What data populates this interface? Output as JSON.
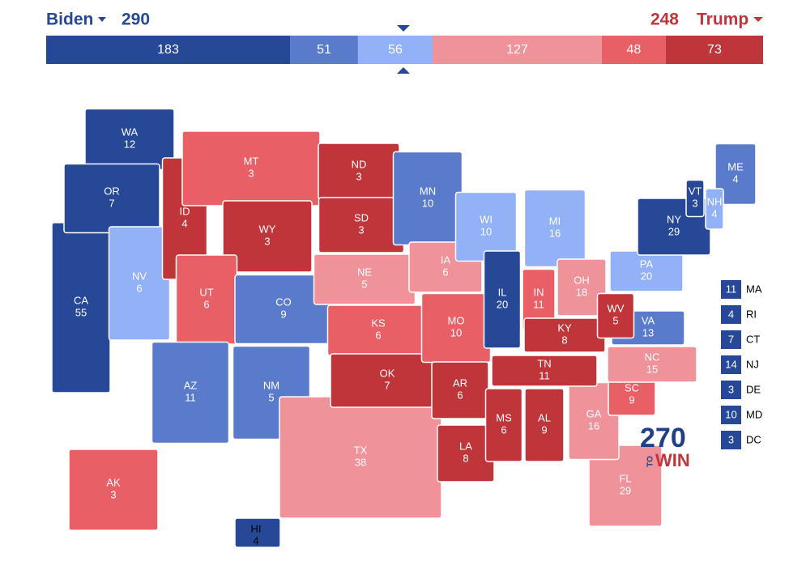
{
  "header": {
    "left_name": "Biden",
    "left_total": 290,
    "right_total": 248,
    "right_name": "Trump"
  },
  "ratings": [
    {
      "color": "#264896"
    },
    {
      "color": "#5a7bcb"
    },
    {
      "color": "#93b1f6"
    },
    {
      "color": "#f0929a"
    },
    {
      "color": "#e95f66"
    },
    {
      "color": "#c0353a"
    }
  ],
  "bar": [
    {
      "value": 183,
      "rating": 0
    },
    {
      "value": 51,
      "rating": 1
    },
    {
      "value": 56,
      "rating": 2
    },
    {
      "value": 127,
      "rating": 3
    },
    {
      "value": 48,
      "rating": 4
    },
    {
      "value": 73,
      "rating": 5
    }
  ],
  "states": [
    {
      "abbr": "CA",
      "ev": 55,
      "rating": 0
    },
    {
      "abbr": "WA",
      "ev": 12,
      "rating": 0
    },
    {
      "abbr": "OR",
      "ev": 7,
      "rating": 0
    },
    {
      "abbr": "NV",
      "ev": 6,
      "rating": 2
    },
    {
      "abbr": "ID",
      "ev": 4,
      "rating": 5
    },
    {
      "abbr": "MT",
      "ev": 3,
      "rating": 4
    },
    {
      "abbr": "WY",
      "ev": 3,
      "rating": 5
    },
    {
      "abbr": "UT",
      "ev": 6,
      "rating": 4
    },
    {
      "abbr": "AZ",
      "ev": 11,
      "rating": 1
    },
    {
      "abbr": "CO",
      "ev": 9,
      "rating": 1
    },
    {
      "abbr": "NM",
      "ev": 5,
      "rating": 1
    },
    {
      "abbr": "ND",
      "ev": 3,
      "rating": 5
    },
    {
      "abbr": "SD",
      "ev": 3,
      "rating": 5
    },
    {
      "abbr": "NE",
      "ev": 5,
      "rating": 3
    },
    {
      "abbr": "KS",
      "ev": 6,
      "rating": 4
    },
    {
      "abbr": "TX",
      "ev": 38,
      "rating": 3
    },
    {
      "abbr": "OK",
      "ev": 7,
      "rating": 5
    },
    {
      "abbr": "MN",
      "ev": 10,
      "rating": 1
    },
    {
      "abbr": "IA",
      "ev": 6,
      "rating": 3
    },
    {
      "abbr": "MO",
      "ev": 10,
      "rating": 4
    },
    {
      "abbr": "AR",
      "ev": 6,
      "rating": 5
    },
    {
      "abbr": "LA",
      "ev": 8,
      "rating": 5
    },
    {
      "abbr": "WI",
      "ev": 10,
      "rating": 2
    },
    {
      "abbr": "IL",
      "ev": 20,
      "rating": 0
    },
    {
      "abbr": "MI",
      "ev": 16,
      "rating": 2
    },
    {
      "abbr": "IN",
      "ev": 11,
      "rating": 4
    },
    {
      "abbr": "OH",
      "ev": 18,
      "rating": 3
    },
    {
      "abbr": "FL",
      "ev": 29,
      "rating": 3
    },
    {
      "abbr": "GA",
      "ev": 16,
      "rating": 3
    },
    {
      "abbr": "MS",
      "ev": 6,
      "rating": 5
    },
    {
      "abbr": "AL",
      "ev": 9,
      "rating": 5
    },
    {
      "abbr": "TN",
      "ev": 11,
      "rating": 5
    },
    {
      "abbr": "KY",
      "ev": 8,
      "rating": 5
    },
    {
      "abbr": "SC",
      "ev": 9,
      "rating": 4
    },
    {
      "abbr": "NC",
      "ev": 15,
      "rating": 3
    },
    {
      "abbr": "VA",
      "ev": 13,
      "rating": 1
    },
    {
      "abbr": "WV",
      "ev": 5,
      "rating": 5
    },
    {
      "abbr": "PA",
      "ev": 20,
      "rating": 2
    },
    {
      "abbr": "NY",
      "ev": 29,
      "rating": 0
    },
    {
      "abbr": "ME",
      "ev": 4,
      "rating": 1
    },
    {
      "abbr": "VT",
      "ev": 3,
      "rating": 0
    },
    {
      "abbr": "NH",
      "ev": 4,
      "rating": 2
    },
    {
      "abbr": "AK",
      "ev": 3,
      "rating": 4
    },
    {
      "abbr": "HI",
      "ev": 4,
      "rating": 0
    }
  ],
  "small_states": [
    {
      "abbr": "MA",
      "ev": 11,
      "rating": 0
    },
    {
      "abbr": "RI",
      "ev": 4,
      "rating": 0
    },
    {
      "abbr": "CT",
      "ev": 7,
      "rating": 0
    },
    {
      "abbr": "NJ",
      "ev": 14,
      "rating": 0
    },
    {
      "abbr": "DE",
      "ev": 3,
      "rating": 0
    },
    {
      "abbr": "MD",
      "ev": 10,
      "rating": 0
    },
    {
      "abbr": "DC",
      "ev": 3,
      "rating": 0
    }
  ],
  "logo": {
    "number": "270",
    "to": "TO",
    "win": "WIN"
  }
}
